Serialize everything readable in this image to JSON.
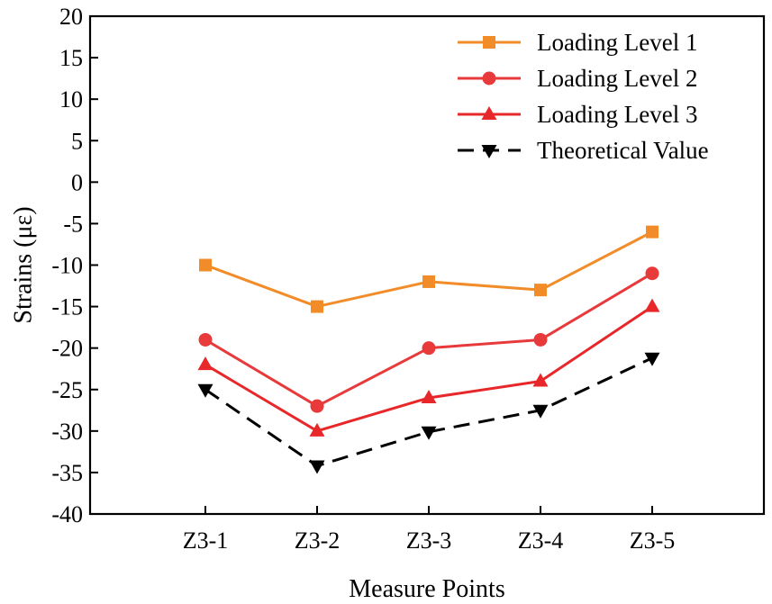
{
  "chart_data": {
    "type": "line",
    "title": "",
    "xlabel": "Measure Points",
    "ylabel": "Strains (με)",
    "categories": [
      "Z3-1",
      "Z3-2",
      "Z3-3",
      "Z3-4",
      "Z3-5"
    ],
    "ylim": [
      -40,
      20
    ],
    "yticks": [
      20,
      15,
      10,
      5,
      0,
      -5,
      -10,
      -15,
      -20,
      -25,
      -30,
      -35,
      -40
    ],
    "ytick_labels": [
      "20",
      "15",
      "10",
      "5",
      "0",
      "-5",
      "-10",
      "-15",
      "-20",
      "-25",
      "-30",
      "-35",
      "-40"
    ],
    "grid": false,
    "legend_position": "top-right",
    "series": [
      {
        "name": "Loading Level 1",
        "values": [
          -10,
          -15,
          -12,
          -13,
          -6
        ],
        "color": "#F28C28",
        "marker": "square",
        "dash": "solid"
      },
      {
        "name": "Loading Level 2",
        "values": [
          -19,
          -27,
          -20,
          -19,
          -11
        ],
        "color": "#E8393B",
        "marker": "circle",
        "dash": "solid"
      },
      {
        "name": "Loading Level 3",
        "values": [
          -22,
          -30,
          -26,
          -24,
          -15
        ],
        "color": "#E8272A",
        "marker": "triangle-up",
        "dash": "solid"
      },
      {
        "name": "Theoretical Value",
        "values": [
          -25,
          -34.2,
          -30.1,
          -27.5,
          -21.2
        ],
        "color": "#000000",
        "marker": "triangle-down",
        "dash": "dashed"
      }
    ]
  }
}
